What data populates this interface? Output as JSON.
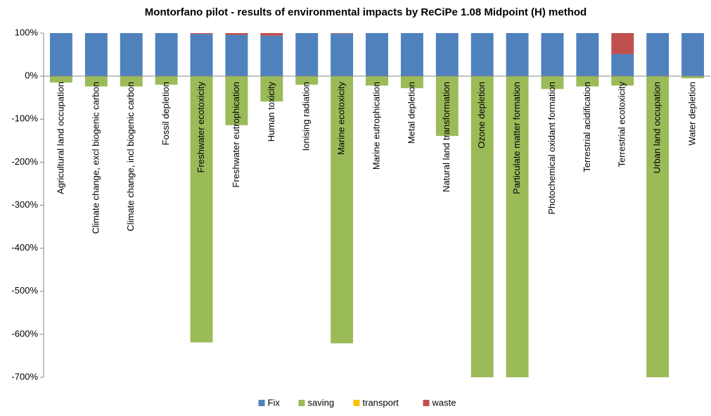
{
  "chart_data": {
    "type": "stacked_bar",
    "title": "Montorfano pilot - results of environmental impacts by ReCiPe 1.08 Midpoint (H) method",
    "categories": [
      "Agricultural land occupation",
      "Climate change, excl biogenic carbon",
      "Climate change, incl biogenic carbon",
      "Fossil depletion",
      "Freshwater ecotoxicity",
      "Freshwater eutrophication",
      "Human toxicity",
      "Ionising radiation",
      "Marine ecotoxicity",
      "Marine eutrophication",
      "Metal depletion",
      "Natural land transformation",
      "Ozone depletion",
      "Particulate matter formation",
      "Photochemical oxidant formation",
      "Terrestrial acidification",
      "Terrestrial ecotoxicity",
      "Urban land occupation",
      "Water depletion"
    ],
    "series": [
      {
        "name": "Fix",
        "color": "#4f81bd",
        "values": [
          100,
          100,
          100,
          100,
          98,
          96,
          94,
          100,
          99,
          100,
          100,
          100,
          100,
          100,
          100,
          100,
          51,
          100,
          100
        ]
      },
      {
        "name": "saving",
        "color": "#9bbb59",
        "values": [
          -15,
          -24,
          -24,
          -20,
          -619,
          -114,
          -59,
          -20,
          -621,
          -22,
          -28,
          -139,
          -700,
          -700,
          -30,
          -24,
          -22,
          -700,
          -5
        ]
      },
      {
        "name": "transport",
        "color": "#ffc000",
        "values": [
          0,
          0,
          0,
          0,
          0,
          0,
          0,
          0,
          0,
          0,
          0,
          0,
          0,
          0,
          0,
          0,
          0,
          0,
          0
        ]
      },
      {
        "name": "waste",
        "color": "#c0504d",
        "values": [
          0,
          0,
          0,
          0,
          2,
          4,
          6,
          0,
          1,
          0,
          0,
          0,
          0,
          0,
          0,
          0,
          49,
          0,
          0
        ]
      }
    ],
    "ylim": [
      -700,
      100
    ],
    "yticks": [
      {
        "value": 100,
        "label": "100%"
      },
      {
        "value": 0,
        "label": "0%"
      },
      {
        "value": -100,
        "label": "-100%"
      },
      {
        "value": -200,
        "label": "-200%"
      },
      {
        "value": -300,
        "label": "-300%"
      },
      {
        "value": -400,
        "label": "-400%"
      },
      {
        "value": -500,
        "label": "-500%"
      },
      {
        "value": -600,
        "label": "-600%"
      },
      {
        "value": -700,
        "label": "-700%"
      }
    ],
    "legend": "bottom"
  }
}
